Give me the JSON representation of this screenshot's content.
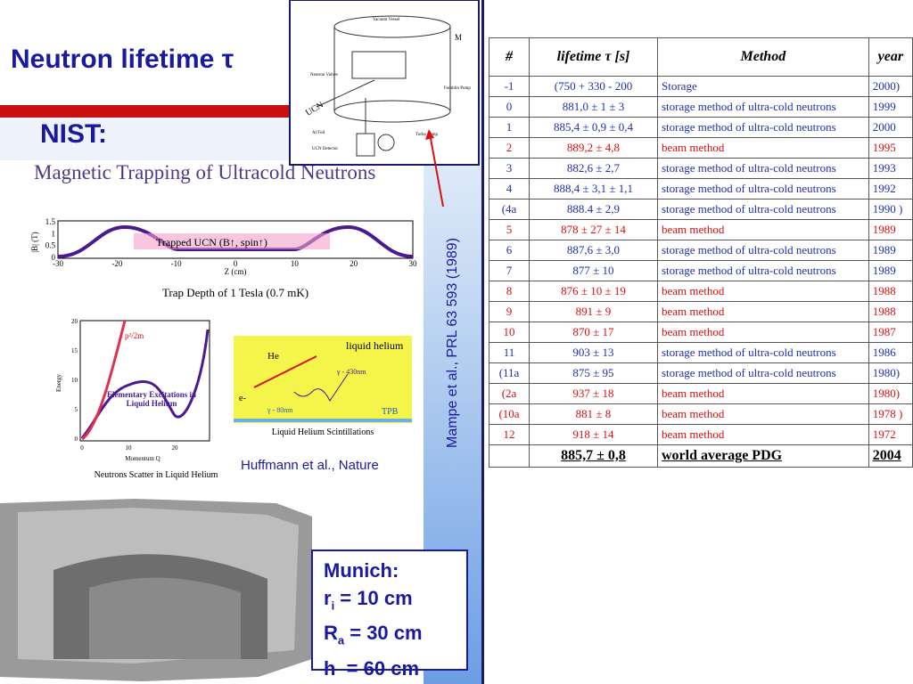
{
  "slide": {
    "title": "Neutron lifetime τ",
    "subtitle": "NIST:",
    "figure_title": "Magnetic Trapping of Ultracold Neutrons",
    "apparatus": {
      "vessel": "Vacuum Vessel",
      "ucn": "UCN",
      "valves": "Neutron Valves",
      "foil": "Al Foil",
      "detector": "UCN Detector",
      "turbo": "Turbo Pump",
      "fomblin": "Fomblin Pump",
      "m": "M"
    },
    "trap_plot": {
      "ylabel": "|B| (T)",
      "xlabel": "Z (cm)",
      "label": "Trapped UCN (B↑, spin↑)",
      "caption": "Trap Depth of 1 Tesla (0.7 mK)",
      "yticks": [
        "1.5",
        "1",
        "0.5",
        "0"
      ],
      "xticks": [
        "-30",
        "-20",
        "-10",
        "0",
        "10",
        "20",
        "30"
      ]
    },
    "energy_plot": {
      "ylabel": "Energy",
      "xlabel": "Momentum Q",
      "curve_label": "p²/2m",
      "label": "Elementary Excitations in Liquid Helium",
      "caption": "Neutrons Scatter in Liquid Helium",
      "yticks": [
        "20",
        "15",
        "10",
        "5",
        "0"
      ],
      "xticks": [
        "0",
        "10",
        "20"
      ]
    },
    "scint": {
      "title": "liquid helium",
      "he": "He",
      "gamma_high": "γ - 430nm",
      "gamma_low": "γ - 80nm",
      "electron": "e-",
      "tpb": "TPB",
      "caption": "Liquid Helium Scintillations"
    },
    "citation_nature": "Huffmann et al., Nature",
    "citation_mampe": "Mampe et al., PRL 63 593 (1989)",
    "munich": {
      "title": "Munich:",
      "lines": [
        {
          "sym": "r",
          "sub": "i",
          "rest": " = 10 cm"
        },
        {
          "sym": "R",
          "sub": "a",
          "rest": " = 30 cm"
        },
        {
          "sym": "h",
          "rest": "  = 60 cm"
        }
      ]
    }
  },
  "table": {
    "header": [
      "#",
      "lifetime τ [s]",
      "Method",
      "year"
    ],
    "rows": [
      {
        "color": "#1f2fb0",
        "cells": [
          "-1",
          "(750 + 330 - 200",
          "Storage",
          "2000)"
        ]
      },
      {
        "color": "#1f2fb0",
        "cells": [
          "0",
          "881,0 ± 1 ± 3",
          "storage method of ultra-cold neutrons",
          "1999"
        ]
      },
      {
        "color": "#1f2fb0",
        "cells": [
          "1",
          "885,4 ± 0,9 ± 0,4",
          "storage method of ultra-cold neutrons",
          "2000"
        ]
      },
      {
        "color": "#d81010",
        "cells": [
          "2",
          "889,2 ± 4,8",
          "beam method",
          "1995"
        ]
      },
      {
        "color": "#1f2fb0",
        "cells": [
          "3",
          "882,6 ± 2,7",
          "storage method of ultra-cold neutrons",
          "1993"
        ]
      },
      {
        "color": "#1f2fb0",
        "cells": [
          "4",
          "888,4 ± 3,1 ± 1,1",
          "storage method of ultra-cold neutrons",
          "1992"
        ]
      },
      {
        "color": "#1f2fb0",
        "cells": [
          "(4a",
          "888.4 ± 2,9",
          "storage method of ultra-cold neutrons",
          "1990 )"
        ]
      },
      {
        "color": "#d81010",
        "cells": [
          "5",
          "878 ± 27 ± 14",
          "beam method",
          "1989"
        ]
      },
      {
        "color": "#1f2fb0",
        "cells": [
          "6",
          "887,6 ± 3,0",
          "storage method of ultra-cold neutrons",
          "1989"
        ]
      },
      {
        "color": "#1f2fb0",
        "cells": [
          "7",
          "877 ± 10",
          "storage method of ultra-cold neutrons",
          "1989"
        ]
      },
      {
        "color": "#d81010",
        "cells": [
          "8",
          "876 ± 10 ± 19",
          "beam method",
          "1988"
        ]
      },
      {
        "color": "#d81010",
        "cells": [
          "9",
          "891 ± 9",
          "beam method",
          "1988"
        ]
      },
      {
        "color": "#d81010",
        "cells": [
          "10",
          "870 ± 17",
          "beam method",
          "1987"
        ]
      },
      {
        "color": "#1f2fb0",
        "cells": [
          "11",
          "903 ± 13",
          "storage method of ultra-cold neutrons",
          "1986"
        ]
      },
      {
        "color": "#1f2fb0",
        "cells": [
          "(11a",
          "875 ± 95",
          "storage method of ultra-cold neutrons",
          "1980)"
        ]
      },
      {
        "color": "#d81010",
        "cells": [
          "(2a",
          "937 ± 18",
          "beam method",
          "1980)"
        ]
      },
      {
        "color": "#d81010",
        "cells": [
          "(10a",
          "881 ± 8",
          "beam method",
          "1978 )"
        ]
      },
      {
        "color": "#d81010",
        "cells": [
          "12",
          "918 ± 14",
          "beam method",
          "1972"
        ]
      }
    ],
    "footer": {
      "lifetime": "885,7 ± 0,8",
      "method": "world average PDG",
      "year": "2004"
    }
  }
}
